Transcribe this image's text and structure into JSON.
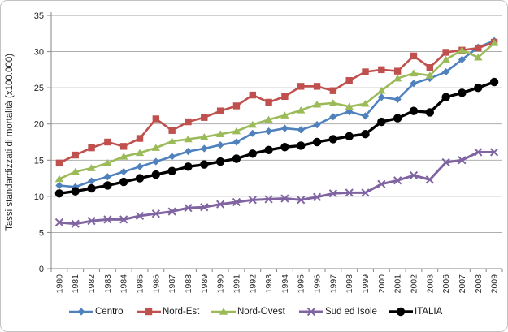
{
  "figure": {
    "y_axis_title": "Tassi standardizzati di mortalità (x100.000)"
  },
  "chart_data": {
    "type": "line",
    "title": "",
    "xlabel": "",
    "ylabel": "Tassi standardizzati di mortalità (x100.000)",
    "ylim": [
      0,
      35
    ],
    "y_ticks": [
      0,
      5,
      10,
      15,
      20,
      25,
      30,
      35
    ],
    "grid": true,
    "legend_position": "bottom",
    "x_note": "years 2004 and 2005 are absent from the axis",
    "categories": [
      "1980",
      "1981",
      "1982",
      "1983",
      "1984",
      "1985",
      "1986",
      "1987",
      "1988",
      "1989",
      "1990",
      "1991",
      "1992",
      "1993",
      "1994",
      "1995",
      "1996",
      "1997",
      "1998",
      "1999",
      "2000",
      "2001",
      "2002",
      "2003",
      "2006",
      "2007",
      "2008",
      "2009"
    ],
    "series": [
      {
        "name": "Centro",
        "color": "#4F81BD",
        "marker": "diamond",
        "values": [
          11.5,
          11.3,
          12.1,
          12.7,
          13.4,
          14.1,
          14.8,
          15.5,
          16.2,
          16.6,
          17.1,
          17.5,
          18.7,
          19.0,
          19.4,
          19.2,
          19.9,
          21.0,
          21.7,
          21.1,
          23.7,
          23.4,
          25.6,
          26.3,
          27.2,
          28.9,
          30.6,
          31.5
        ]
      },
      {
        "name": "Nord-Est",
        "color": "#C0504D",
        "marker": "square",
        "values": [
          14.6,
          15.7,
          16.7,
          17.5,
          16.9,
          18.0,
          20.7,
          19.1,
          20.3,
          20.9,
          21.8,
          22.5,
          24.0,
          23.0,
          23.8,
          25.2,
          25.2,
          24.6,
          26.0,
          27.2,
          27.5,
          27.3,
          29.4,
          27.8,
          29.9,
          30.2,
          30.5,
          31.3
        ]
      },
      {
        "name": "Nord-Ovest",
        "color": "#9BBB59",
        "marker": "triangle",
        "values": [
          12.4,
          13.4,
          13.9,
          14.6,
          15.5,
          16.0,
          16.7,
          17.6,
          17.9,
          18.2,
          18.6,
          19.0,
          19.9,
          20.6,
          21.2,
          21.9,
          22.7,
          22.9,
          22.4,
          22.8,
          24.6,
          26.3,
          27.0,
          26.7,
          28.9,
          30.2,
          29.2,
          31.2
        ]
      },
      {
        "name": "Sud ed Isole",
        "color": "#8064A2",
        "marker": "x",
        "values": [
          6.4,
          6.2,
          6.6,
          6.8,
          6.8,
          7.3,
          7.6,
          7.9,
          8.4,
          8.5,
          8.9,
          9.2,
          9.5,
          9.6,
          9.7,
          9.5,
          9.9,
          10.4,
          10.5,
          10.5,
          11.7,
          12.2,
          12.9,
          12.3,
          14.7,
          15.0,
          16.1,
          16.1
        ]
      },
      {
        "name": "ITALIA",
        "color": "#000000",
        "marker": "circle",
        "values": [
          10.4,
          10.7,
          11.1,
          11.5,
          12.0,
          12.5,
          13.0,
          13.5,
          14.1,
          14.4,
          14.8,
          15.2,
          15.9,
          16.4,
          16.8,
          17.0,
          17.5,
          17.9,
          18.3,
          18.6,
          20.3,
          20.8,
          21.8,
          21.6,
          23.7,
          24.3,
          25.0,
          25.8
        ]
      }
    ],
    "styles": {
      "gridline_color": "#a3a3a3",
      "axis_color": "#868686",
      "tick_label_color": "#262626",
      "line_width": 2.6,
      "italia_line_width": 3.4
    }
  }
}
